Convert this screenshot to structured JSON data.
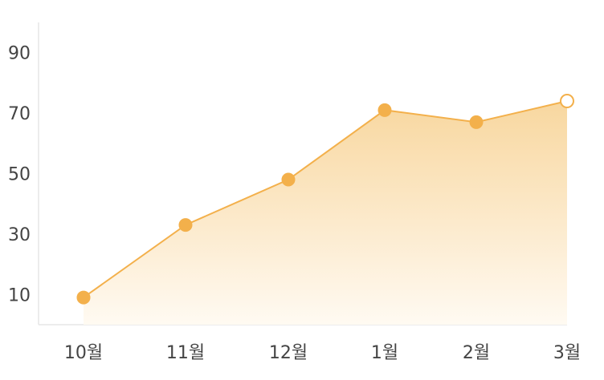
{
  "chart_data": {
    "type": "area",
    "categories": [
      "10월",
      "11월",
      "12월",
      "1월",
      "2월",
      "3월"
    ],
    "series": [
      {
        "values": [
          9,
          33,
          48,
          71,
          67,
          74
        ]
      }
    ],
    "yticks": [
      "90",
      "70",
      "50",
      "30",
      "10"
    ],
    "ytick_values": [
      90,
      70,
      50,
      30,
      10
    ],
    "ylim": [
      0,
      100
    ],
    "grid": false,
    "legend": "none",
    "colors": {
      "line": "#f3b04b",
      "marker": "#f3b04b",
      "last_marker_fill": "#ffffff",
      "area_top": "#f8d79f",
      "area_bottom": "#fffaf2",
      "axis": "#e6e6e6",
      "text": "#444444"
    }
  }
}
